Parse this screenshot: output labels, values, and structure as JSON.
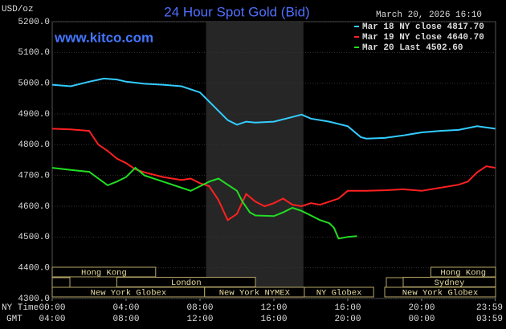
{
  "chart_data": {
    "type": "line",
    "title": "24 Hour Spot Gold (Bid)",
    "y_unit": "USD/oz",
    "timestamp": "March 20, 2026 16:10",
    "watermark": "www.kitco.com",
    "x_row_label": "NY Time",
    "x2_row_label": "GMT",
    "xlim": [
      0,
      24
    ],
    "xticks": [
      {
        "value": 0,
        "label": "00:00"
      },
      {
        "value": 4,
        "label": "04:00"
      },
      {
        "value": 8,
        "label": "08:00"
      },
      {
        "value": 12,
        "label": "12:00"
      },
      {
        "value": 16,
        "label": "16:00"
      },
      {
        "value": 20,
        "label": "20:00"
      },
      {
        "value": 23.983,
        "label": "23:59"
      }
    ],
    "x2ticks": [
      "04:00",
      "08:00",
      "12:00",
      "16:00",
      "20:00",
      "00:00",
      "03:59"
    ],
    "ylim": [
      4300,
      5200
    ],
    "yticks": [
      {
        "value": 4300,
        "label": "4300.0"
      },
      {
        "value": 4400,
        "label": "4400.0"
      },
      {
        "value": 4500,
        "label": "4500.0"
      },
      {
        "value": 4600,
        "label": "4600.0"
      },
      {
        "value": 4700,
        "label": "4700.0"
      },
      {
        "value": 4800,
        "label": "4800.0"
      },
      {
        "value": 4900,
        "label": "4900.0"
      },
      {
        "value": 5000,
        "label": "5000.0"
      },
      {
        "value": 5100,
        "label": "5100.0"
      },
      {
        "value": 5200,
        "label": "5200.0"
      }
    ],
    "grid": true,
    "shade": [
      8.33,
      13.6
    ],
    "series": [
      {
        "name": "Mar 18 NY close 4817.70",
        "color": "#33ccff",
        "x": [
          0,
          1,
          2,
          2.8,
          3.5,
          4,
          5,
          6,
          7,
          8,
          9,
          9.5,
          10,
          10.5,
          11,
          12,
          13,
          13.5,
          14,
          15,
          16,
          16.7,
          17,
          18,
          19,
          20,
          21,
          22,
          23,
          23.983
        ],
        "values": [
          4995,
          4990,
          5005,
          5015,
          5012,
          5005,
          4998,
          4995,
          4990,
          4970,
          4910,
          4880,
          4865,
          4875,
          4872,
          4875,
          4890,
          4898,
          4885,
          4875,
          4860,
          4825,
          4820,
          4822,
          4830,
          4840,
          4845,
          4848,
          4860,
          4852
        ]
      },
      {
        "name": "Mar 19 NY close 4640.70",
        "color": "#ff2020",
        "x": [
          0,
          1,
          2,
          2.5,
          3,
          3.5,
          4,
          4.5,
          5,
          6,
          7,
          7.5,
          8,
          8.5,
          9,
          9.5,
          10,
          10.5,
          11,
          11.5,
          12,
          12.5,
          13,
          13.5,
          14,
          14.5,
          15,
          15.5,
          16,
          17,
          18,
          19,
          20,
          21,
          22,
          22.5,
          23,
          23.5,
          23.983
        ],
        "values": [
          4852,
          4850,
          4845,
          4800,
          4780,
          4755,
          4740,
          4720,
          4710,
          4695,
          4685,
          4690,
          4675,
          4665,
          4620,
          4555,
          4575,
          4640,
          4615,
          4600,
          4610,
          4625,
          4605,
          4600,
          4610,
          4605,
          4615,
          4625,
          4650,
          4650,
          4652,
          4655,
          4650,
          4660,
          4670,
          4680,
          4710,
          4730,
          4725
        ]
      },
      {
        "name": "Mar 20 Last 4502.60",
        "color": "#22dd22",
        "x": [
          0,
          1,
          2,
          2.5,
          3,
          3.5,
          4,
          4.5,
          5,
          6,
          7,
          7.5,
          8,
          8.5,
          9,
          9.5,
          10,
          10.3,
          10.7,
          11,
          12,
          12.5,
          13,
          13.5,
          14,
          14.5,
          15,
          15.25,
          15.5,
          16,
          16.5
        ],
        "values": [
          4725,
          4718,
          4712,
          4690,
          4668,
          4680,
          4695,
          4725,
          4700,
          4680,
          4660,
          4650,
          4665,
          4680,
          4690,
          4670,
          4650,
          4615,
          4580,
          4570,
          4568,
          4580,
          4595,
          4585,
          4570,
          4555,
          4545,
          4530,
          4495,
          4500,
          4502.6
        ]
      }
    ],
    "sessions": [
      {
        "label": "Hong Kong",
        "start": 0,
        "end": 5.6
      },
      {
        "label": "London",
        "start": 3.5,
        "end": 11.0
      },
      {
        "label": "New York Globex",
        "start": 0,
        "end": 8.25
      },
      {
        "label": "New York NYMEX",
        "start": 8.25,
        "end": 13.65
      },
      {
        "label": "NY Globex",
        "start": 13.65,
        "end": 17.4
      },
      {
        "label": "Hong Kong",
        "start": 20.5,
        "end": 24
      },
      {
        "label": "Sydney",
        "start": 19,
        "end": 24
      },
      {
        "label": "New York Globex",
        "start": 18,
        "end": 24
      }
    ]
  }
}
